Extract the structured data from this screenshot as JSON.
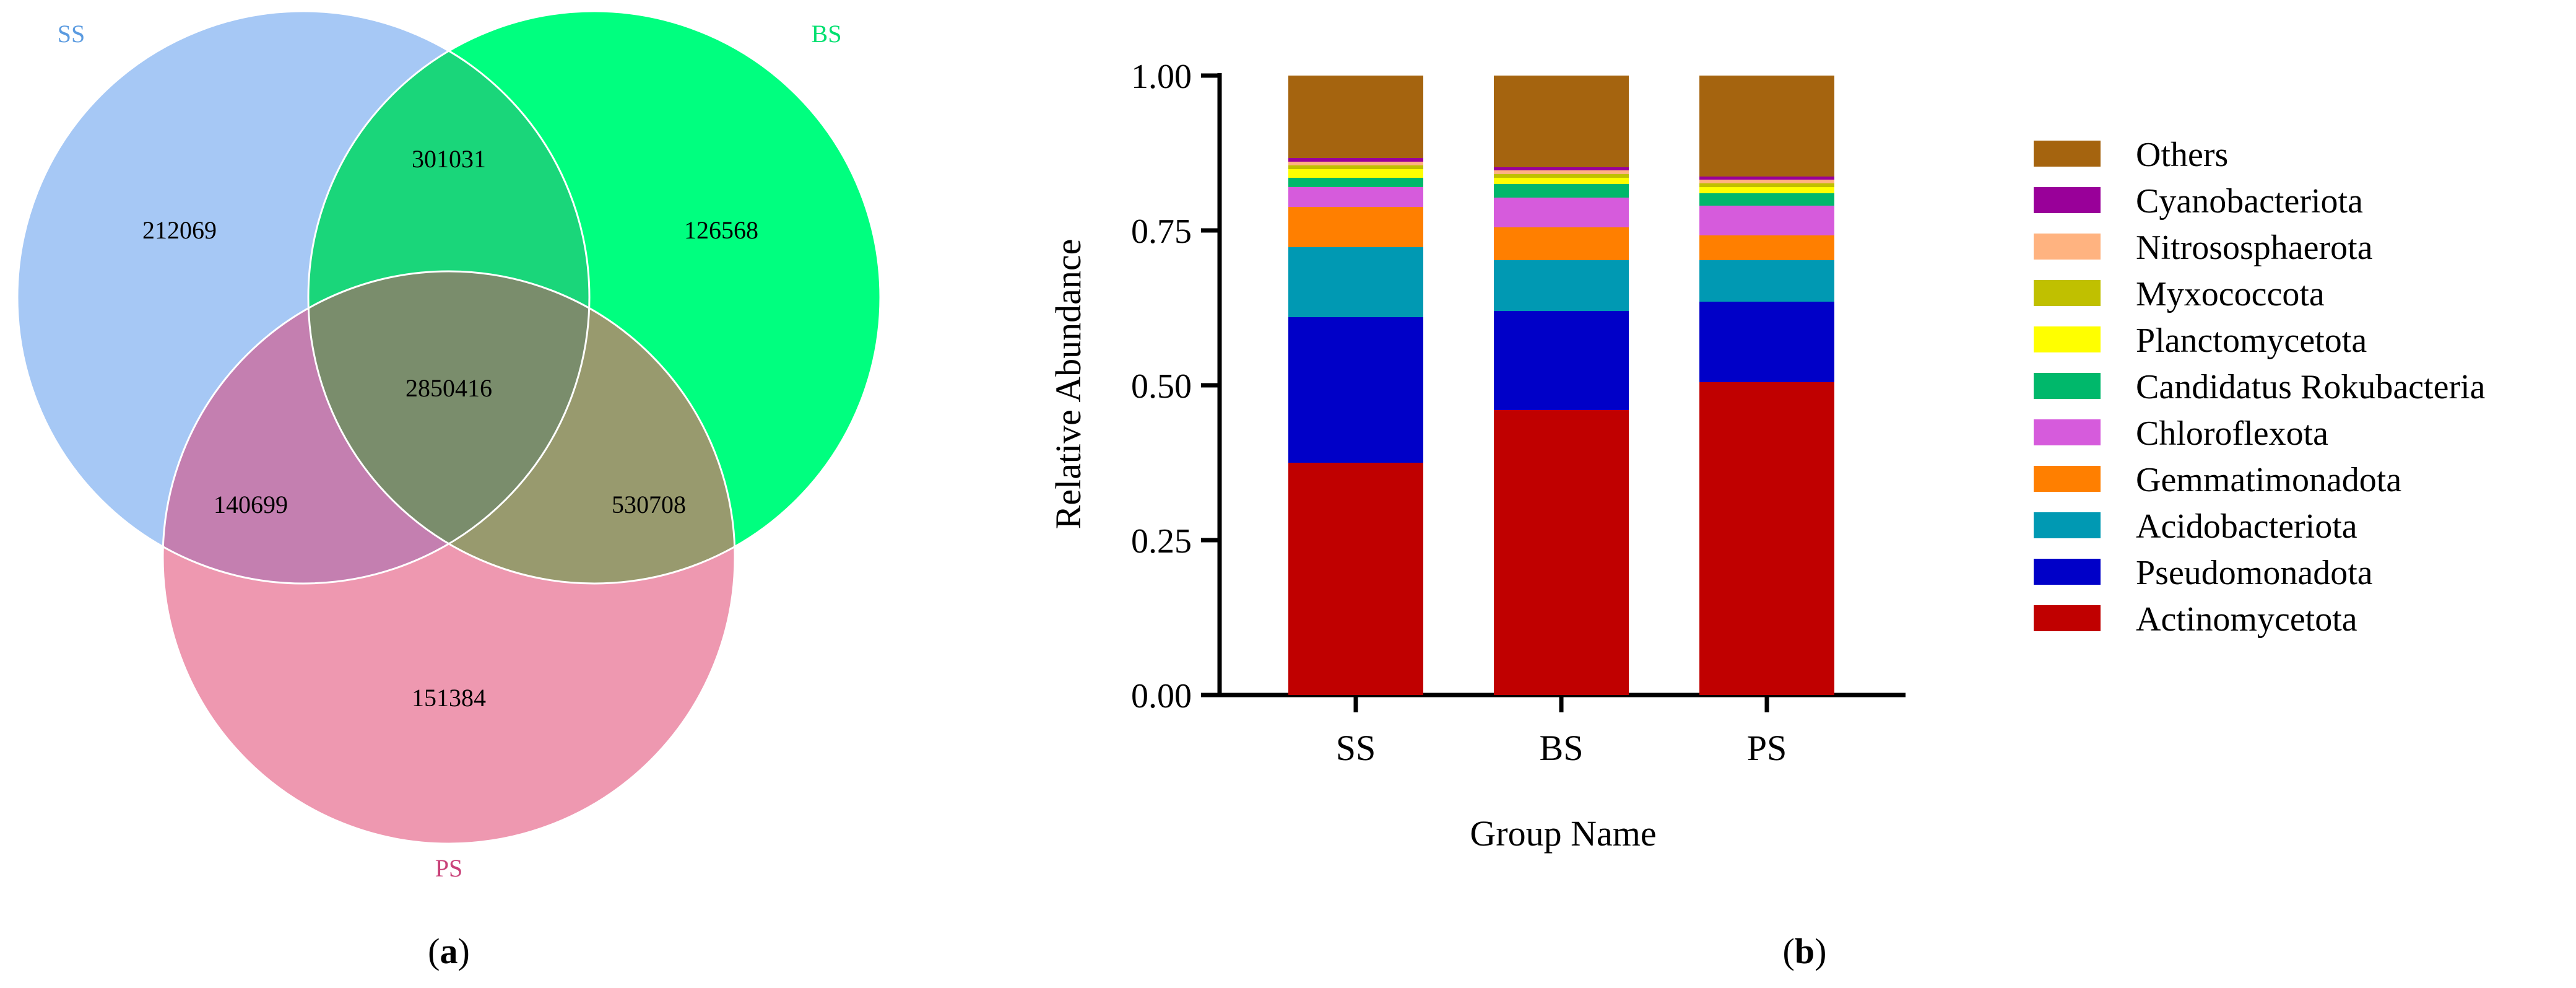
{
  "panels": {
    "a": {
      "label_open": "(",
      "label_letter": "a",
      "label_close": ")"
    },
    "b": {
      "label_open": "(",
      "label_letter": "b",
      "label_close": ")"
    }
  },
  "chart_data": [
    {
      "type": "venn",
      "sets": [
        {
          "name": "SS",
          "color": "#a6c8f5",
          "label_color": "#5b9be0"
        },
        {
          "name": "BS",
          "color": "#00ff7f",
          "label_color": "#00e070"
        },
        {
          "name": "PS",
          "color": "#ee98b0",
          "label_color": "#c94078"
        }
      ],
      "regions": [
        {
          "sets": [
            "SS"
          ],
          "value": "212069"
        },
        {
          "sets": [
            "BS"
          ],
          "value": "126568"
        },
        {
          "sets": [
            "PS"
          ],
          "value": "151384"
        },
        {
          "sets": [
            "SS",
            "BS"
          ],
          "value": "301031"
        },
        {
          "sets": [
            "SS",
            "PS"
          ],
          "value": "140699"
        },
        {
          "sets": [
            "BS",
            "PS"
          ],
          "value": "530708"
        },
        {
          "sets": [
            "SS",
            "BS",
            "PS"
          ],
          "value": "2850416"
        }
      ],
      "region_colors": {
        "SS_BS": "#1ad67a",
        "SS_PS": "#c47fb0",
        "BS_PS": "#989a6e",
        "SS_BS_PS": "#7a8d6c"
      }
    },
    {
      "type": "bar",
      "stacked": true,
      "categories": [
        "SS",
        "BS",
        "PS"
      ],
      "xlabel": "Group Name",
      "ylabel": "Relative Abundance",
      "ylim": [
        0,
        1
      ],
      "yticks": [
        "0.00",
        "0.25",
        "0.50",
        "0.75",
        "1.00"
      ],
      "legend_position": "right",
      "series": [
        {
          "name": "Actinomycetota",
          "color": "#c00000",
          "values": [
            0.375,
            0.46,
            0.505
          ]
        },
        {
          "name": "Pseudomonadota",
          "color": "#0000c8",
          "values": [
            0.235,
            0.16,
            0.13
          ]
        },
        {
          "name": "Acidobacteriota",
          "color": "#0099b3",
          "values": [
            0.113,
            0.082,
            0.067
          ]
        },
        {
          "name": "Gemmatimonadota",
          "color": "#ff7f00",
          "values": [
            0.065,
            0.053,
            0.04
          ]
        },
        {
          "name": "Chloroflexota",
          "color": "#d65bdc",
          "values": [
            0.032,
            0.048,
            0.048
          ]
        },
        {
          "name": "Candidatus Rokubacteria",
          "color": "#00b86b",
          "values": [
            0.015,
            0.022,
            0.02
          ]
        },
        {
          "name": "Planctomycetota",
          "color": "#ffff00",
          "values": [
            0.014,
            0.01,
            0.01
          ]
        },
        {
          "name": "Myxococcota",
          "color": "#c0c000",
          "values": [
            0.006,
            0.006,
            0.006
          ]
        },
        {
          "name": "Nitrososphaerota",
          "color": "#ffb380",
          "values": [
            0.006,
            0.006,
            0.006
          ]
        },
        {
          "name": "Cyanobacteriota",
          "color": "#990099",
          "values": [
            0.006,
            0.005,
            0.005
          ]
        },
        {
          "name": "Others",
          "color": "#a5640f",
          "values": [
            0.133,
            0.148,
            0.163
          ]
        }
      ]
    }
  ]
}
